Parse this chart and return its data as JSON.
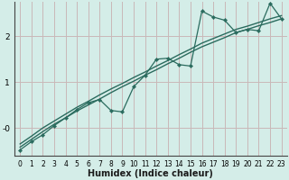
{
  "title": "",
  "xlabel": "Humidex (Indice chaleur)",
  "bg_color": "#d4ede8",
  "grid_color": "#c9b8b8",
  "line_color": "#2a6b5e",
  "xlim": [
    -0.5,
    23.5
  ],
  "ylim": [
    -0.6,
    2.75
  ],
  "yticks": [
    0,
    1,
    2
  ],
  "ytick_labels": [
    "-0",
    "1",
    "2"
  ],
  "xticks": [
    0,
    1,
    2,
    3,
    4,
    5,
    6,
    7,
    8,
    9,
    10,
    11,
    12,
    13,
    14,
    15,
    16,
    17,
    18,
    19,
    20,
    21,
    22,
    23
  ],
  "line1_x": [
    0,
    1,
    2,
    3,
    4,
    5,
    6,
    7,
    8,
    9,
    10,
    11,
    12,
    13,
    14,
    15,
    16,
    17,
    18,
    19,
    20,
    21,
    22,
    23
  ],
  "line1_y": [
    -0.35,
    -0.18,
    0.0,
    0.15,
    0.3,
    0.45,
    0.58,
    0.72,
    0.85,
    0.97,
    1.1,
    1.22,
    1.35,
    1.47,
    1.6,
    1.72,
    1.85,
    1.95,
    2.05,
    2.15,
    2.22,
    2.3,
    2.38,
    2.45
  ],
  "line2_x": [
    0,
    1,
    2,
    3,
    4,
    5,
    6,
    7,
    8,
    9,
    10,
    11,
    12,
    13,
    14,
    15,
    16,
    17,
    18,
    19,
    20,
    21,
    22,
    23
  ],
  "line2_y": [
    -0.42,
    -0.25,
    -0.08,
    0.08,
    0.22,
    0.37,
    0.5,
    0.63,
    0.77,
    0.9,
    1.02,
    1.15,
    1.27,
    1.4,
    1.52,
    1.65,
    1.77,
    1.87,
    1.97,
    2.08,
    2.15,
    2.23,
    2.3,
    2.38
  ],
  "line3_x": [
    0,
    1,
    2,
    3,
    4,
    5,
    6,
    7,
    8,
    9,
    10,
    11,
    12,
    13,
    14,
    15,
    16,
    17,
    18,
    19,
    20,
    21,
    22,
    23
  ],
  "line3_y": [
    -0.48,
    -0.3,
    -0.15,
    0.05,
    0.22,
    0.4,
    0.55,
    0.62,
    0.38,
    0.35,
    0.9,
    1.15,
    1.5,
    1.52,
    1.38,
    1.35,
    2.55,
    2.42,
    2.35,
    2.08,
    2.15,
    2.12,
    2.72,
    2.38
  ]
}
